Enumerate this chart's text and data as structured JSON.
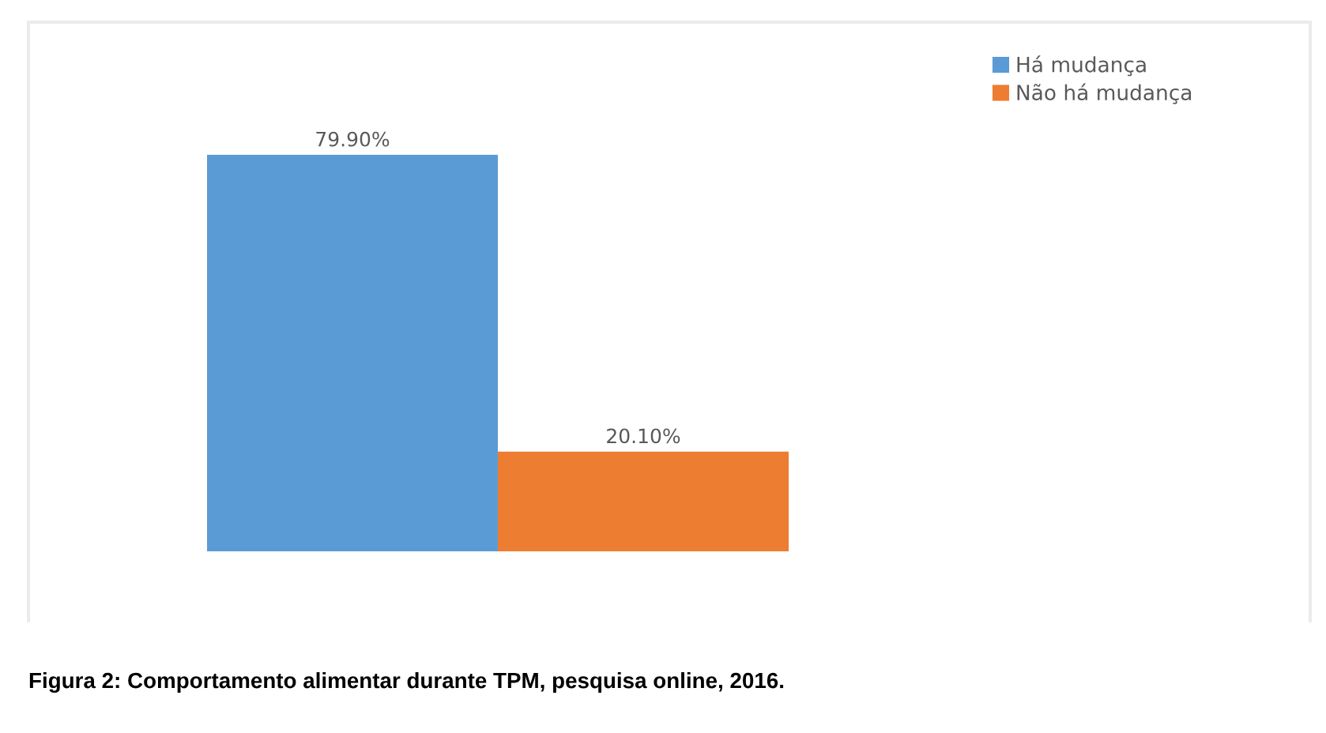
{
  "chart_data": {
    "type": "bar",
    "categories": [
      null
    ],
    "series": [
      {
        "name": "Há mudança",
        "color": "#5b9bd5",
        "values": [
          79.9
        ],
        "value_labels": [
          "79.90%"
        ]
      },
      {
        "name": "Não há mudança",
        "color": "#ed7d31",
        "values": [
          20.1
        ],
        "value_labels": [
          "20.10%"
        ]
      }
    ],
    "legend": "top right",
    "annotations": [
      "Figura 2: Comportamento alimentar durante TPM, pesquisa online, 2016."
    ]
  }
}
